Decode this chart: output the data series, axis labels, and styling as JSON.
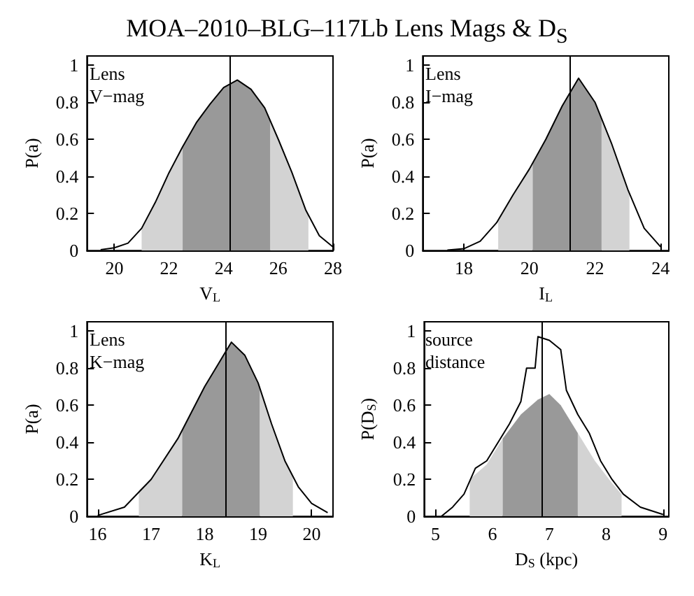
{
  "chart_data": [
    {
      "type": "line",
      "title": "MOA–2010–BLG–117Lb Lens Mags & D$_{S}$",
      "xlabel": "V$_{L}$",
      "ylabel": "P(a)",
      "annotations": [
        "Lens",
        "V−mag"
      ],
      "xlim": [
        19,
        28
      ],
      "xticks": [
        20,
        22,
        24,
        26,
        28
      ],
      "ylim": [
        0,
        1.05
      ],
      "yticks": [
        0,
        0.2,
        0.4,
        0.6,
        0.8,
        1
      ],
      "ref_lines": [
        {
          "axis": "x",
          "value": 24.2,
          "color": "#000000"
        }
      ],
      "series": [
        {
          "type": "area",
          "color": "#d3d3d3",
          "x": [
            21.0,
            21.5,
            22,
            22.5
          ],
          "values": [
            0.12,
            0.26,
            0.42,
            0.56
          ]
        },
        {
          "type": "area",
          "color": "#d3d3d3",
          "x": [
            25.7,
            26,
            26.5,
            27,
            27.1
          ],
          "values": [
            0.7,
            0.6,
            0.42,
            0.22,
            0.2
          ]
        },
        {
          "type": "area",
          "color": "#999999",
          "x": [
            22.5,
            23,
            23.5,
            24,
            24.5,
            25,
            25.5,
            25.7
          ],
          "values": [
            0.56,
            0.69,
            0.79,
            0.88,
            0.92,
            0.87,
            0.77,
            0.7
          ]
        },
        {
          "color": "#000000",
          "x": [
            19.5,
            20,
            20.5,
            21,
            21.5,
            22,
            22.5,
            23,
            23.5,
            24,
            24.5,
            25,
            25.5,
            26,
            26.5,
            27,
            27.5,
            28
          ],
          "values": [
            0.005,
            0.015,
            0.04,
            0.12,
            0.26,
            0.42,
            0.56,
            0.69,
            0.79,
            0.88,
            0.92,
            0.87,
            0.77,
            0.6,
            0.42,
            0.22,
            0.08,
            0.02
          ]
        }
      ]
    },
    {
      "type": "line",
      "xlabel": "I$_{L}$",
      "ylabel": "P(a)",
      "annotations": [
        "Lens",
        "I−mag"
      ],
      "xlim": [
        16.75,
        24.25
      ],
      "xticks": [
        18,
        20,
        22,
        24
      ],
      "ylim": [
        0,
        1.05
      ],
      "yticks": [
        0,
        0.2,
        0.4,
        0.6,
        0.8,
        1
      ],
      "ref_lines": [
        {
          "axis": "x",
          "value": 21.25,
          "color": "#000000"
        }
      ],
      "series": [
        {
          "type": "area",
          "color": "#d3d3d3",
          "x": [
            19.05,
            19.5,
            20,
            20.1
          ],
          "values": [
            0.16,
            0.3,
            0.44,
            0.47
          ]
        },
        {
          "type": "area",
          "color": "#d3d3d3",
          "x": [
            22.2,
            22.5,
            23,
            23.05
          ],
          "values": [
            0.72,
            0.58,
            0.33,
            0.31
          ]
        },
        {
          "type": "area",
          "color": "#999999",
          "x": [
            20.1,
            20.5,
            21,
            21.5,
            22,
            22.2
          ],
          "values": [
            0.47,
            0.6,
            0.78,
            0.93,
            0.8,
            0.72
          ]
        },
        {
          "color": "#000000",
          "x": [
            17.5,
            18,
            18.5,
            19,
            19.5,
            20,
            20.5,
            21,
            21.5,
            22,
            22.5,
            23,
            23.5,
            24
          ],
          "values": [
            0.003,
            0.01,
            0.05,
            0.15,
            0.3,
            0.44,
            0.6,
            0.78,
            0.93,
            0.8,
            0.58,
            0.33,
            0.12,
            0.02
          ]
        }
      ]
    },
    {
      "type": "line",
      "xlabel": "K$_{L}$",
      "ylabel": "P(a)",
      "annotations": [
        "Lens",
        "K−mag"
      ],
      "xlim": [
        15.8,
        20.4
      ],
      "xticks": [
        16,
        17,
        18,
        19,
        20
      ],
      "ylim": [
        0,
        1.05
      ],
      "yticks": [
        0,
        0.2,
        0.4,
        0.6,
        0.8,
        1
      ],
      "ref_lines": [
        {
          "axis": "x",
          "value": 18.39,
          "color": "#000000"
        }
      ],
      "series": [
        {
          "type": "area",
          "color": "#d3d3d3",
          "x": [
            16.77,
            17,
            17.5,
            17.58
          ],
          "values": [
            0.14,
            0.2,
            0.42,
            0.46
          ]
        },
        {
          "type": "area",
          "color": "#d3d3d3",
          "x": [
            19.03,
            19.25,
            19.5,
            19.65
          ],
          "values": [
            0.7,
            0.5,
            0.3,
            0.22
          ]
        },
        {
          "type": "area",
          "color": "#999999",
          "x": [
            17.58,
            18,
            18.25,
            18.5,
            18.75,
            19,
            19.03
          ],
          "values": [
            0.46,
            0.7,
            0.82,
            0.94,
            0.87,
            0.72,
            0.7
          ]
        },
        {
          "color": "#000000",
          "x": [
            16,
            16.5,
            17,
            17.5,
            18,
            18.25,
            18.5,
            18.75,
            19,
            19.25,
            19.5,
            19.75,
            20,
            20.3
          ],
          "values": [
            0.005,
            0.05,
            0.2,
            0.42,
            0.7,
            0.82,
            0.94,
            0.87,
            0.72,
            0.5,
            0.3,
            0.16,
            0.07,
            0.02
          ]
        }
      ]
    },
    {
      "type": "line",
      "xlabel": "D$_{S}$ (kpc)",
      "ylabel": "P(D$_{S}$)",
      "annotations": [
        "source",
        "distance"
      ],
      "xlim": [
        4.8,
        9.1
      ],
      "xticks": [
        5,
        6,
        7,
        8,
        9
      ],
      "ylim": [
        0,
        1.05
      ],
      "yticks": [
        0,
        0.2,
        0.4,
        0.6,
        0.8,
        1
      ],
      "ref_lines": [
        {
          "axis": "x",
          "value": 6.87,
          "color": "#000000"
        }
      ],
      "series": [
        {
          "type": "area",
          "color": "#d3d3d3",
          "x": [
            5.6,
            5.9,
            6.18
          ],
          "values": [
            0.2,
            0.28,
            0.42
          ]
        },
        {
          "type": "area",
          "color": "#d3d3d3",
          "x": [
            7.5,
            7.8,
            8.1,
            8.27
          ],
          "values": [
            0.45,
            0.3,
            0.18,
            0.12
          ]
        },
        {
          "type": "area",
          "color": "#999999",
          "x": [
            6.18,
            6.5,
            6.8,
            7,
            7.2,
            7.5
          ],
          "values": [
            0.42,
            0.55,
            0.63,
            0.66,
            0.6,
            0.45
          ]
        },
        {
          "color": "#000000",
          "x": [
            5.1,
            5.3,
            5.5,
            5.7,
            5.9,
            6.1,
            6.3,
            6.5,
            6.6,
            6.75,
            6.8,
            7,
            7.2,
            7.3,
            7.5,
            7.7,
            7.9,
            8.1,
            8.3,
            8.6,
            9
          ],
          "values": [
            0,
            0.05,
            0.12,
            0.26,
            0.3,
            0.4,
            0.5,
            0.62,
            0.8,
            0.8,
            0.97,
            0.95,
            0.9,
            0.68,
            0.55,
            0.45,
            0.3,
            0.2,
            0.12,
            0.05,
            0.01
          ]
        }
      ]
    }
  ]
}
